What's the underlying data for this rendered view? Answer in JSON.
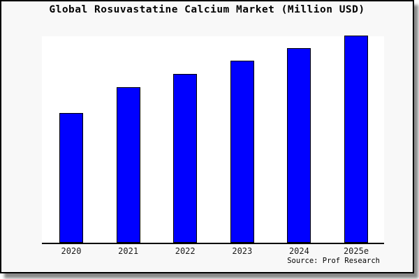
{
  "title": "Global Rosuvastatine Calcium Market (Million USD)",
  "source_label": "Source: Prof Research",
  "colors": {
    "bar_fill": "#0000ff",
    "bar_border": "#000000",
    "card_background": "#f8f8f8",
    "plot_background": "#ffffff",
    "axis": "#000000",
    "title_text": "#000000"
  },
  "chart_data": {
    "type": "bar",
    "title": "Global Rosuvastatine Calcium Market (Million USD)",
    "categories": [
      "2020",
      "2021",
      "2022",
      "2023",
      "2024",
      "2025e"
    ],
    "values": [
      186,
      223,
      242,
      261,
      279,
      297
    ],
    "values_unit": "relative bar height in pixels (no numeric y-axis scale shown in image)",
    "xlabel": "",
    "ylabel": "",
    "y_axis_visible": false,
    "gridlines": false,
    "legend": false,
    "bar_color": "#0000ff",
    "bar_border_color": "#000000",
    "source_note": "Prof Research"
  }
}
